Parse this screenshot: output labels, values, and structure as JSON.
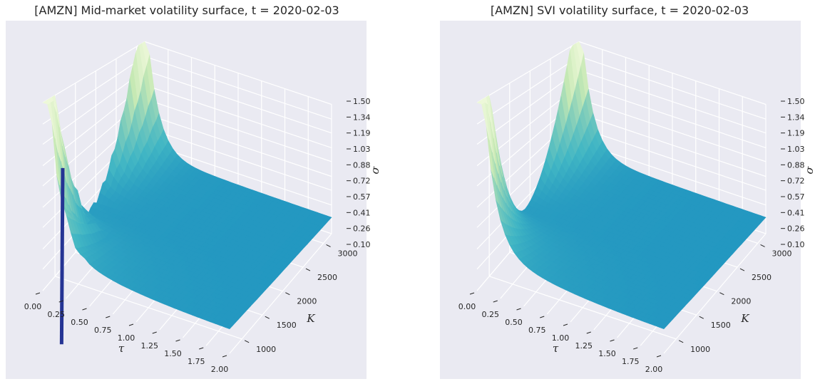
{
  "chart_data": [
    {
      "type": "surface3d",
      "title": "[AMZN] Mid-market volatility surface, t = 2020-02-03",
      "xlabel": "τ",
      "ylabel": "K",
      "zlabel": "σ",
      "x_ticks": [
        "0.00",
        "0.25",
        "0.50",
        "0.75",
        "1.00",
        "1.25",
        "1.50",
        "1.75",
        "2.00"
      ],
      "y_ticks": [
        "1000",
        "1500",
        "2000",
        "2500",
        "3000"
      ],
      "z_ticks": [
        "0.10",
        "0.26",
        "0.41",
        "0.57",
        "0.72",
        "0.88",
        "1.03",
        "1.19",
        "1.34",
        "1.50"
      ],
      "xlim": [
        0,
        2.0
      ],
      "ylim": [
        700,
        3200
      ],
      "zlim": [
        0.1,
        1.5
      ],
      "colormap": "YlGnBu",
      "description_points": [
        {
          "tau": 0.02,
          "K": 1000,
          "sigma": 1.45
        },
        {
          "tau": 0.02,
          "K": 1850,
          "sigma": 0.3
        },
        {
          "tau": 0.02,
          "K": 2900,
          "sigma": 1.05
        },
        {
          "tau": 0.4,
          "K": 1000,
          "sigma": 0.55
        },
        {
          "tau": 0.4,
          "K": 2000,
          "sigma": 0.28
        },
        {
          "tau": 1.0,
          "K": 2000,
          "sigma": 0.27
        },
        {
          "tau": 2.0,
          "K": 1000,
          "sigma": 0.33
        },
        {
          "tau": 2.0,
          "K": 3000,
          "sigma": 0.26
        }
      ]
    },
    {
      "type": "surface3d",
      "title": "[AMZN] SVI volatility surface, t = 2020-02-03",
      "xlabel": "τ",
      "ylabel": "K",
      "zlabel": "σ",
      "x_ticks": [
        "0.00",
        "0.25",
        "0.50",
        "0.75",
        "1.00",
        "1.25",
        "1.50",
        "1.75",
        "2.00"
      ],
      "y_ticks": [
        "1000",
        "1500",
        "2000",
        "2500",
        "3000"
      ],
      "z_ticks": [
        "0.10",
        "0.26",
        "0.41",
        "0.57",
        "0.72",
        "0.88",
        "1.03",
        "1.19",
        "1.34",
        "1.50"
      ],
      "xlim": [
        0,
        2.0
      ],
      "ylim": [
        700,
        3200
      ],
      "zlim": [
        0.1,
        1.5
      ],
      "colormap": "YlGnBu",
      "description_points": [
        {
          "tau": 0.02,
          "K": 1000,
          "sigma": 1.4
        },
        {
          "tau": 0.02,
          "K": 1850,
          "sigma": 0.3
        },
        {
          "tau": 0.02,
          "K": 2900,
          "sigma": 1.0
        },
        {
          "tau": 0.4,
          "K": 1000,
          "sigma": 0.55
        },
        {
          "tau": 0.4,
          "K": 2000,
          "sigma": 0.27
        },
        {
          "tau": 1.0,
          "K": 2000,
          "sigma": 0.26
        },
        {
          "tau": 2.0,
          "K": 1000,
          "sigma": 0.33
        },
        {
          "tau": 2.0,
          "K": 3000,
          "sigma": 0.26
        }
      ]
    }
  ],
  "colors": {
    "panel_background": "#eaeaf2",
    "grid": "#ffffff",
    "surface_low": "#2388bd",
    "surface_mid": "#5dbfc0",
    "surface_high": "#d7efb4",
    "spike_dark": "#253494"
  }
}
